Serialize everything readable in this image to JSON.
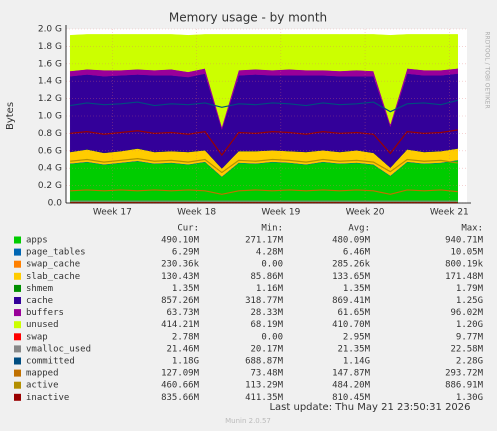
{
  "chart_data": {
    "type": "area",
    "title": "Memory usage - by month",
    "y_label": "Bytes",
    "side_text": "RRDTOOL / TOBI OETIKER",
    "x": [
      16.5,
      16.7,
      16.9,
      17.1,
      17.3,
      17.5,
      17.7,
      17.9,
      18.1,
      18.3,
      18.5,
      18.7,
      18.9,
      19.1,
      19.3,
      19.5,
      19.7,
      19.9,
      20.1,
      20.3,
      20.5,
      20.7,
      20.9,
      21.1
    ],
    "xlim": [
      16.45,
      21.21
    ],
    "xticks": [
      {
        "value": 17,
        "label": "Week 17"
      },
      {
        "value": 18,
        "label": "Week 18"
      },
      {
        "value": 19,
        "label": "Week 19"
      },
      {
        "value": 20,
        "label": "Week 20"
      },
      {
        "value": 21,
        "label": "Week 21"
      }
    ],
    "ylim": [
      0,
      2.0
    ],
    "yticks": [
      {
        "value": 0,
        "label": "0.0"
      },
      {
        "value": 0.2,
        "label": "0.2 G"
      },
      {
        "value": 0.4,
        "label": "0.4 G"
      },
      {
        "value": 0.6,
        "label": "0.6 G"
      },
      {
        "value": 0.8,
        "label": "0.8 G"
      },
      {
        "value": 1.0,
        "label": "1.0 G"
      },
      {
        "value": 1.2,
        "label": "1.2 G"
      },
      {
        "value": 1.4,
        "label": "1.4 G"
      },
      {
        "value": 1.6,
        "label": "1.6 G"
      },
      {
        "value": 1.8,
        "label": "1.8 G"
      },
      {
        "value": 2.0,
        "label": "2.0 G"
      }
    ],
    "grid": true,
    "stats_headers": [
      "Cur:",
      "Min:",
      "Avg:",
      "Max:"
    ],
    "series": [
      {
        "name": "apps",
        "color": "#00cc00",
        "style": "area",
        "stats": [
          "490.10M",
          "271.17M",
          "480.09M",
          "940.71M"
        ],
        "values": [
          0.45,
          0.47,
          0.44,
          0.46,
          0.48,
          0.45,
          0.46,
          0.44,
          0.47,
          0.3,
          0.46,
          0.45,
          0.47,
          0.46,
          0.44,
          0.47,
          0.45,
          0.46,
          0.44,
          0.31,
          0.47,
          0.45,
          0.46,
          0.49
        ]
      },
      {
        "name": "page_tables",
        "color": "#0066b3",
        "style": "area",
        "stats": [
          "6.29M",
          "4.28M",
          "6.46M",
          "10.05M"
        ],
        "values": [
          0.006,
          0.006,
          0.006,
          0.006,
          0.006,
          0.006,
          0.006,
          0.006,
          0.006,
          0.006,
          0.006,
          0.006,
          0.006,
          0.006,
          0.006,
          0.006,
          0.006,
          0.006,
          0.006,
          0.006,
          0.006,
          0.006,
          0.006,
          0.006
        ]
      },
      {
        "name": "swap_cache",
        "color": "#ff8000",
        "style": "area",
        "stats": [
          "230.36k",
          "0.00",
          "285.26k",
          "800.19k"
        ],
        "values": [
          0.0003,
          0.0003,
          0.0003,
          0.0003,
          0.0003,
          0.0003,
          0.0003,
          0.0003,
          0.0003,
          0.0003,
          0.0003,
          0.0003,
          0.0003,
          0.0003,
          0.0003,
          0.0003,
          0.0003,
          0.0003,
          0.0003,
          0.0003,
          0.0003,
          0.0003,
          0.0003,
          0.0003
        ]
      },
      {
        "name": "slab_cache",
        "color": "#ffcc00",
        "style": "area",
        "stats": [
          "130.43M",
          "85.86M",
          "133.65M",
          "171.48M"
        ],
        "values": [
          0.13,
          0.14,
          0.13,
          0.13,
          0.14,
          0.13,
          0.13,
          0.14,
          0.13,
          0.09,
          0.13,
          0.14,
          0.13,
          0.13,
          0.14,
          0.13,
          0.13,
          0.14,
          0.13,
          0.09,
          0.14,
          0.13,
          0.13,
          0.13
        ]
      },
      {
        "name": "shmem",
        "color": "#008f00",
        "style": "area",
        "stats": [
          "1.35M",
          "1.16M",
          "1.35M",
          "1.79M"
        ],
        "values": [
          0.0013,
          0.0013,
          0.0013,
          0.0013,
          0.0013,
          0.0013,
          0.0013,
          0.0013,
          0.0013,
          0.0013,
          0.0013,
          0.0013,
          0.0013,
          0.0013,
          0.0013,
          0.0013,
          0.0013,
          0.0013,
          0.0013,
          0.0013,
          0.0013,
          0.0013,
          0.0013,
          0.0013
        ]
      },
      {
        "name": "cache",
        "color": "#330099",
        "style": "area",
        "stats": [
          "857.26M",
          "318.77M",
          "869.41M",
          "1.25G"
        ],
        "values": [
          0.87,
          0.86,
          0.88,
          0.87,
          0.85,
          0.88,
          0.87,
          0.86,
          0.88,
          0.45,
          0.87,
          0.88,
          0.86,
          0.87,
          0.88,
          0.86,
          0.87,
          0.85,
          0.88,
          0.47,
          0.87,
          0.88,
          0.87,
          0.86
        ]
      },
      {
        "name": "buffers",
        "color": "#990099",
        "style": "area",
        "stats": [
          "63.73M",
          "28.33M",
          "61.65M",
          "96.02M"
        ],
        "values": [
          0.06,
          0.06,
          0.07,
          0.06,
          0.06,
          0.06,
          0.07,
          0.06,
          0.06,
          0.03,
          0.06,
          0.06,
          0.06,
          0.07,
          0.06,
          0.06,
          0.06,
          0.07,
          0.06,
          0.03,
          0.06,
          0.06,
          0.06,
          0.06
        ]
      },
      {
        "name": "unused",
        "color": "#ccff00",
        "style": "area",
        "stats": [
          "414.21M",
          "68.19M",
          "410.70M",
          "1.20G"
        ],
        "values": [
          0.41,
          0.4,
          0.41,
          0.41,
          0.4,
          0.41,
          0.4,
          0.42,
          0.39,
          1.06,
          0.41,
          0.4,
          0.41,
          0.4,
          0.41,
          0.41,
          0.42,
          0.41,
          0.42,
          1.02,
          0.39,
          0.41,
          0.41,
          0.39
        ]
      },
      {
        "name": "swap",
        "color": "#ff0000",
        "style": "line",
        "stats": [
          "2.78M",
          "0.00",
          "2.95M",
          "9.77M"
        ],
        "values": [
          0.003,
          0.003,
          0.003,
          0.003,
          0.003,
          0.003,
          0.003,
          0.003,
          0.003,
          0.003,
          0.003,
          0.003,
          0.003,
          0.003,
          0.003,
          0.003,
          0.003,
          0.003,
          0.003,
          0.003,
          0.003,
          0.003,
          0.003,
          0.003
        ]
      },
      {
        "name": "vmalloc_used",
        "color": "#888888",
        "style": "line",
        "stats": [
          "21.46M",
          "20.17M",
          "21.35M",
          "22.58M"
        ],
        "values": [
          0.021,
          0.021,
          0.021,
          0.021,
          0.021,
          0.021,
          0.021,
          0.021,
          0.021,
          0.021,
          0.021,
          0.021,
          0.021,
          0.021,
          0.021,
          0.021,
          0.021,
          0.021,
          0.021,
          0.021,
          0.021,
          0.021,
          0.021,
          0.021
        ]
      },
      {
        "name": "committed",
        "color": "#004d80",
        "style": "line",
        "stats": [
          "1.18G",
          "688.87M",
          "1.14G",
          "2.28G"
        ],
        "values": [
          1.12,
          1.15,
          1.13,
          1.14,
          1.16,
          1.12,
          1.14,
          1.13,
          1.15,
          1.1,
          1.14,
          1.13,
          1.15,
          1.14,
          1.12,
          1.15,
          1.13,
          1.14,
          1.16,
          1.05,
          1.14,
          1.15,
          1.13,
          1.18
        ]
      },
      {
        "name": "mapped",
        "color": "#c07000",
        "style": "line",
        "stats": [
          "127.09M",
          "73.48M",
          "147.87M",
          "293.72M"
        ],
        "values": [
          0.14,
          0.15,
          0.14,
          0.15,
          0.14,
          0.15,
          0.14,
          0.15,
          0.14,
          0.1,
          0.14,
          0.15,
          0.14,
          0.15,
          0.14,
          0.15,
          0.14,
          0.15,
          0.14,
          0.1,
          0.15,
          0.14,
          0.15,
          0.13
        ]
      },
      {
        "name": "active",
        "color": "#b38f00",
        "style": "line",
        "stats": [
          "460.66M",
          "113.29M",
          "484.20M",
          "886.91M"
        ],
        "values": [
          0.48,
          0.5,
          0.47,
          0.49,
          0.51,
          0.48,
          0.49,
          0.47,
          0.5,
          0.35,
          0.49,
          0.48,
          0.5,
          0.49,
          0.47,
          0.5,
          0.48,
          0.49,
          0.47,
          0.36,
          0.5,
          0.48,
          0.49,
          0.46
        ]
      },
      {
        "name": "inactive",
        "color": "#990000",
        "style": "line",
        "stats": [
          "835.66M",
          "411.35M",
          "810.45M",
          "1.30G"
        ],
        "values": [
          0.8,
          0.82,
          0.79,
          0.81,
          0.83,
          0.8,
          0.81,
          0.79,
          0.82,
          0.55,
          0.81,
          0.8,
          0.82,
          0.81,
          0.79,
          0.82,
          0.8,
          0.81,
          0.79,
          0.57,
          0.82,
          0.8,
          0.81,
          0.84
        ]
      }
    ],
    "last_update": "Last update: Thu May 21 23:50:31 2026",
    "footer": "Munin 2.0.57"
  }
}
